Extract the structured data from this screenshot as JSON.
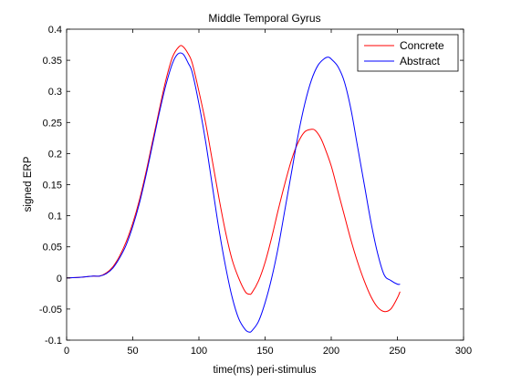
{
  "chart_data": {
    "type": "line",
    "title": "Middle Temporal Gyrus",
    "xlabel": "time(ms) peri-stimulus",
    "ylabel": "signed ERP",
    "xlim": [
      0,
      300
    ],
    "ylim": [
      -0.1,
      0.4
    ],
    "xticks": [
      0,
      50,
      100,
      150,
      200,
      250,
      300
    ],
    "yticks": [
      -0.1,
      -0.05,
      0,
      0.05,
      0.1,
      0.15,
      0.2,
      0.25,
      0.3,
      0.35,
      0.4
    ],
    "xtick_labels": [
      "0",
      "50",
      "100",
      "150",
      "200",
      "250",
      "300"
    ],
    "ytick_labels": [
      "-0.1",
      "-0.05",
      "0",
      "0.05",
      "0.1",
      "0.15",
      "0.2",
      "0.25",
      "0.3",
      "0.35",
      "0.4"
    ],
    "grid": false,
    "legend_position": "top-right",
    "series": [
      {
        "name": "Concrete",
        "color": "#ff0000",
        "x": [
          0,
          10,
          20,
          25,
          30,
          35,
          40,
          45,
          50,
          55,
          60,
          65,
          70,
          75,
          80,
          85,
          88,
          92,
          95,
          100,
          105,
          110,
          115,
          120,
          125,
          130,
          135,
          138,
          140,
          145,
          150,
          155,
          160,
          165,
          170,
          175,
          180,
          185,
          188,
          192,
          195,
          200,
          205,
          210,
          215,
          220,
          225,
          230,
          235,
          240,
          245,
          250,
          252
        ],
        "y": [
          0,
          0.001,
          0.003,
          0.003,
          0.008,
          0.018,
          0.035,
          0.058,
          0.088,
          0.125,
          0.17,
          0.22,
          0.27,
          0.318,
          0.355,
          0.372,
          0.372,
          0.36,
          0.345,
          0.3,
          0.25,
          0.19,
          0.13,
          0.075,
          0.03,
          0.0,
          -0.022,
          -0.026,
          -0.024,
          -0.005,
          0.025,
          0.065,
          0.11,
          0.152,
          0.19,
          0.218,
          0.235,
          0.239,
          0.237,
          0.225,
          0.21,
          0.18,
          0.14,
          0.1,
          0.06,
          0.025,
          -0.005,
          -0.03,
          -0.047,
          -0.054,
          -0.05,
          -0.032,
          -0.022
        ]
      },
      {
        "name": "Abstract",
        "color": "#0000ff",
        "x": [
          0,
          10,
          20,
          25,
          30,
          35,
          40,
          45,
          50,
          55,
          60,
          65,
          70,
          75,
          80,
          84,
          88,
          92,
          95,
          100,
          105,
          110,
          115,
          120,
          125,
          130,
          135,
          138,
          140,
          145,
          150,
          155,
          160,
          165,
          170,
          175,
          180,
          185,
          190,
          195,
          198,
          200,
          205,
          210,
          215,
          220,
          225,
          230,
          235,
          240,
          245,
          250,
          252
        ],
        "y": [
          0,
          0.001,
          0.003,
          0.003,
          0.007,
          0.016,
          0.032,
          0.053,
          0.083,
          0.12,
          0.165,
          0.215,
          0.265,
          0.31,
          0.345,
          0.36,
          0.36,
          0.345,
          0.33,
          0.28,
          0.22,
          0.15,
          0.08,
          0.02,
          -0.03,
          -0.065,
          -0.083,
          -0.087,
          -0.085,
          -0.07,
          -0.04,
          0.0,
          0.05,
          0.11,
          0.17,
          0.23,
          0.28,
          0.318,
          0.342,
          0.353,
          0.355,
          0.352,
          0.34,
          0.315,
          0.27,
          0.21,
          0.15,
          0.09,
          0.04,
          0.005,
          -0.004,
          -0.01,
          -0.01
        ]
      }
    ]
  }
}
